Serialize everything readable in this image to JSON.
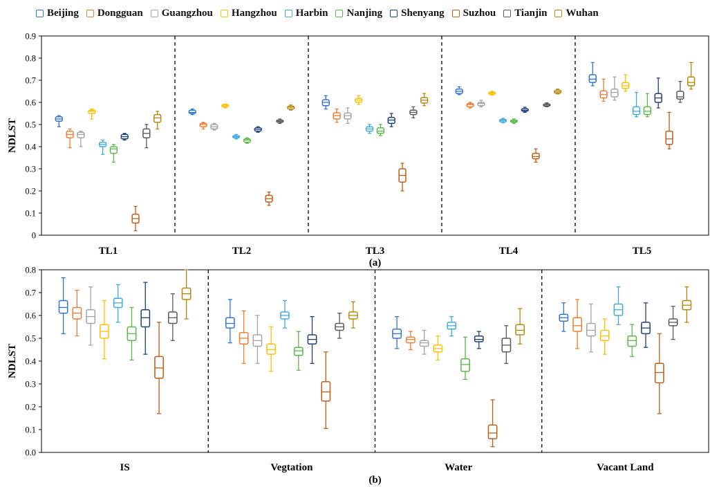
{
  "legend": {
    "cities": [
      "Beijing",
      "Dongguan",
      "Guangzhou",
      "Hangzhou",
      "Harbin",
      "Nanjing",
      "Shenyang",
      "Suzhou",
      "Tianjin",
      "Wuhan"
    ],
    "colors": [
      "#2E75D6",
      "#ED7D31",
      "#A5A5A5",
      "#FFC000",
      "#3FA9E0",
      "#59B848",
      "#1F3F7A",
      "#C55A11",
      "#595959",
      "#B8860B"
    ]
  },
  "chart_data": [
    {
      "type": "box",
      "panel_label": "(a)",
      "ylabel": "NDLST",
      "ylim": [
        0,
        0.9
      ],
      "yticks": [
        "0",
        "0.1",
        "0.2",
        "0.3",
        "0.4",
        "0.5",
        "0.6",
        "0.7",
        "0.8",
        "0.9"
      ],
      "categories": [
        "TL1",
        "TL2",
        "TL3",
        "TL4",
        "TL5"
      ],
      "groups": [
        {
          "name": "TL1",
          "boxes": [
            [
              0.49,
              0.515,
              0.525,
              0.535,
              0.54
            ],
            [
              0.395,
              0.44,
              0.455,
              0.47,
              0.48
            ],
            [
              0.4,
              0.44,
              0.455,
              0.465,
              0.47
            ],
            [
              0.525,
              0.55,
              0.56,
              0.565,
              0.57
            ],
            [
              0.365,
              0.4,
              0.41,
              0.42,
              0.43
            ],
            [
              0.33,
              0.37,
              0.39,
              0.4,
              0.41
            ],
            [
              0.43,
              0.435,
              0.445,
              0.455,
              0.46
            ],
            [
              0.02,
              0.055,
              0.075,
              0.095,
              0.13
            ],
            [
              0.395,
              0.44,
              0.46,
              0.48,
              0.5
            ],
            [
              0.48,
              0.51,
              0.53,
              0.545,
              0.56
            ]
          ]
        },
        {
          "name": "TL2",
          "boxes": [
            [
              0.545,
              0.55,
              0.555,
              0.565,
              0.57
            ],
            [
              0.48,
              0.49,
              0.5,
              0.505,
              0.51
            ],
            [
              0.475,
              0.48,
              0.49,
              0.5,
              0.505
            ],
            [
              0.575,
              0.58,
              0.585,
              0.59,
              0.592
            ],
            [
              0.435,
              0.44,
              0.445,
              0.45,
              0.455
            ],
            [
              0.415,
              0.42,
              0.43,
              0.435,
              0.44
            ],
            [
              0.465,
              0.47,
              0.478,
              0.485,
              0.49
            ],
            [
              0.135,
              0.15,
              0.165,
              0.18,
              0.195
            ],
            [
              0.505,
              0.51,
              0.515,
              0.52,
              0.525
            ],
            [
              0.565,
              0.57,
              0.578,
              0.583,
              0.588
            ]
          ]
        },
        {
          "name": "TL3",
          "boxes": [
            [
              0.57,
              0.585,
              0.6,
              0.612,
              0.63
            ],
            [
              0.51,
              0.525,
              0.54,
              0.553,
              0.57
            ],
            [
              0.505,
              0.525,
              0.54,
              0.552,
              0.575
            ],
            [
              0.59,
              0.6,
              0.61,
              0.618,
              0.63
            ],
            [
              0.46,
              0.47,
              0.48,
              0.49,
              0.5
            ],
            [
              0.45,
              0.46,
              0.47,
              0.485,
              0.5
            ],
            [
              0.49,
              0.505,
              0.52,
              0.532,
              0.55
            ],
            [
              0.2,
              0.24,
              0.27,
              0.3,
              0.325
            ],
            [
              0.53,
              0.545,
              0.555,
              0.565,
              0.58
            ],
            [
              0.585,
              0.597,
              0.61,
              0.622,
              0.64
            ]
          ]
        },
        {
          "name": "TL4",
          "boxes": [
            [
              0.635,
              0.64,
              0.65,
              0.66,
              0.67
            ],
            [
              0.575,
              0.58,
              0.59,
              0.595,
              0.6
            ],
            [
              0.58,
              0.585,
              0.595,
              0.6,
              0.61
            ],
            [
              0.633,
              0.637,
              0.642,
              0.646,
              0.65
            ],
            [
              0.508,
              0.512,
              0.518,
              0.523,
              0.528
            ],
            [
              0.505,
              0.51,
              0.515,
              0.52,
              0.525
            ],
            [
              0.555,
              0.56,
              0.565,
              0.572,
              0.578
            ],
            [
              0.33,
              0.345,
              0.355,
              0.37,
              0.39
            ],
            [
              0.58,
              0.583,
              0.588,
              0.593,
              0.598
            ],
            [
              0.638,
              0.642,
              0.648,
              0.655,
              0.66
            ]
          ]
        },
        {
          "name": "TL5",
          "boxes": [
            [
              0.675,
              0.69,
              0.705,
              0.725,
              0.78
            ],
            [
              0.605,
              0.62,
              0.635,
              0.652,
              0.705
            ],
            [
              0.61,
              0.625,
              0.645,
              0.66,
              0.715
            ],
            [
              0.65,
              0.663,
              0.675,
              0.69,
              0.725
            ],
            [
              0.535,
              0.545,
              0.56,
              0.58,
              0.645
            ],
            [
              0.535,
              0.545,
              0.56,
              0.58,
              0.64
            ],
            [
              0.575,
              0.6,
              0.62,
              0.64,
              0.71
            ],
            [
              0.39,
              0.41,
              0.435,
              0.47,
              0.555
            ],
            [
              0.6,
              0.615,
              0.625,
              0.65,
              0.695
            ],
            [
              0.66,
              0.675,
              0.69,
              0.715,
              0.78
            ]
          ]
        }
      ]
    },
    {
      "type": "box",
      "panel_label": "(b)",
      "ylabel": "NDLST",
      "ylim": [
        0.0,
        0.8
      ],
      "yticks": [
        "0.0",
        "0.1",
        "0.2",
        "0.3",
        "0.4",
        "0.5",
        "0.6",
        "0.7",
        "0.8"
      ],
      "categories": [
        "IS",
        "Vegtation",
        "Water",
        "Vacant Land"
      ],
      "groups": [
        {
          "name": "IS",
          "boxes": [
            [
              0.52,
              0.61,
              0.635,
              0.665,
              0.765
            ],
            [
              0.51,
              0.585,
              0.61,
              0.635,
              0.71
            ],
            [
              0.47,
              0.565,
              0.595,
              0.625,
              0.725
            ],
            [
              0.41,
              0.5,
              0.53,
              0.56,
              0.665
            ],
            [
              0.57,
              0.635,
              0.655,
              0.675,
              0.735
            ],
            [
              0.405,
              0.49,
              0.52,
              0.55,
              0.635
            ],
            [
              0.43,
              0.55,
              0.59,
              0.625,
              0.745
            ],
            [
              0.17,
              0.325,
              0.37,
              0.42,
              0.57
            ],
            [
              0.49,
              0.565,
              0.59,
              0.615,
              0.695
            ],
            [
              0.585,
              0.67,
              0.695,
              0.72,
              0.8
            ]
          ]
        },
        {
          "name": "Vegtation",
          "boxes": [
            [
              0.48,
              0.545,
              0.565,
              0.59,
              0.67
            ],
            [
              0.39,
              0.475,
              0.5,
              0.525,
              0.62
            ],
            [
              0.39,
              0.465,
              0.49,
              0.515,
              0.6
            ],
            [
              0.355,
              0.43,
              0.45,
              0.475,
              0.55
            ],
            [
              0.545,
              0.585,
              0.6,
              0.615,
              0.665
            ],
            [
              0.36,
              0.425,
              0.445,
              0.46,
              0.53
            ],
            [
              0.39,
              0.475,
              0.495,
              0.515,
              0.595
            ],
            [
              0.105,
              0.225,
              0.265,
              0.31,
              0.44
            ],
            [
              0.5,
              0.535,
              0.55,
              0.565,
              0.61
            ],
            [
              0.545,
              0.585,
              0.6,
              0.615,
              0.66
            ]
          ]
        },
        {
          "name": "Water",
          "boxes": [
            [
              0.455,
              0.5,
              0.52,
              0.54,
              0.595
            ],
            [
              0.45,
              0.48,
              0.495,
              0.505,
              0.53
            ],
            [
              0.43,
              0.465,
              0.48,
              0.49,
              0.535
            ],
            [
              0.405,
              0.44,
              0.455,
              0.47,
              0.51
            ],
            [
              0.51,
              0.54,
              0.555,
              0.57,
              0.595
            ],
            [
              0.32,
              0.355,
              0.385,
              0.41,
              0.505
            ],
            [
              0.455,
              0.485,
              0.495,
              0.51,
              0.53
            ],
            [
              0.025,
              0.06,
              0.085,
              0.12,
              0.23
            ],
            [
              0.39,
              0.44,
              0.47,
              0.5,
              0.555
            ],
            [
              0.475,
              0.515,
              0.535,
              0.56,
              0.63
            ]
          ]
        },
        {
          "name": "Vacant Land",
          "boxes": [
            [
              0.53,
              0.575,
              0.59,
              0.605,
              0.655
            ],
            [
              0.455,
              0.53,
              0.555,
              0.59,
              0.67
            ],
            [
              0.44,
              0.51,
              0.535,
              0.565,
              0.65
            ],
            [
              0.43,
              0.49,
              0.51,
              0.535,
              0.585
            ],
            [
              0.56,
              0.6,
              0.625,
              0.65,
              0.725
            ],
            [
              0.42,
              0.465,
              0.49,
              0.51,
              0.56
            ],
            [
              0.46,
              0.52,
              0.545,
              0.57,
              0.655
            ],
            [
              0.17,
              0.305,
              0.35,
              0.39,
              0.52
            ],
            [
              0.495,
              0.555,
              0.57,
              0.585,
              0.64
            ],
            [
              0.57,
              0.625,
              0.645,
              0.665,
              0.725
            ]
          ]
        }
      ]
    }
  ]
}
